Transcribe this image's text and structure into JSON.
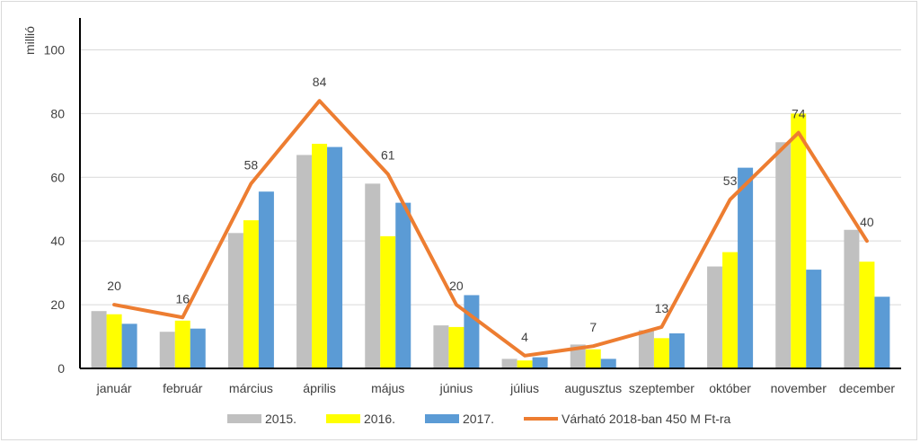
{
  "chart_data": {
    "type": "bar",
    "title": "",
    "ylabel": "millió",
    "xlabel": "",
    "ylim": [
      0,
      110
    ],
    "yticks": [
      0,
      20,
      40,
      60,
      80,
      100
    ],
    "grid": true,
    "legend_position": "bottom",
    "categories": [
      "január",
      "február",
      "március",
      "április",
      "május",
      "június",
      "július",
      "augusztus",
      "szeptember",
      "október",
      "november",
      "december"
    ],
    "series": [
      {
        "name": "2015.",
        "type": "bar",
        "color": "#c0c0c0",
        "values": [
          18,
          11.5,
          42.5,
          67,
          58,
          13.5,
          3,
          7.5,
          12,
          32,
          71,
          43.5
        ]
      },
      {
        "name": "2016.",
        "type": "bar",
        "color": "#ffff00",
        "values": [
          17,
          15,
          46.5,
          70.5,
          41.5,
          13,
          2.5,
          6,
          9.5,
          36.5,
          80,
          33.5
        ]
      },
      {
        "name": "2017.",
        "type": "bar",
        "color": "#5b9bd5",
        "values": [
          14,
          12.5,
          55.5,
          69.5,
          52,
          23,
          3.5,
          3,
          11,
          63,
          31,
          22.5
        ]
      },
      {
        "name": "Várható 2018-ban 450 M Ft-ra",
        "type": "line",
        "color": "#ed7d31",
        "values": [
          20,
          16,
          58,
          84,
          61,
          20,
          4,
          7,
          13,
          53,
          74,
          40
        ],
        "data_labels": [
          "20",
          "16",
          "58",
          "84",
          "61",
          "20",
          "4",
          "7",
          "13",
          "53",
          "74",
          "40"
        ]
      }
    ]
  }
}
